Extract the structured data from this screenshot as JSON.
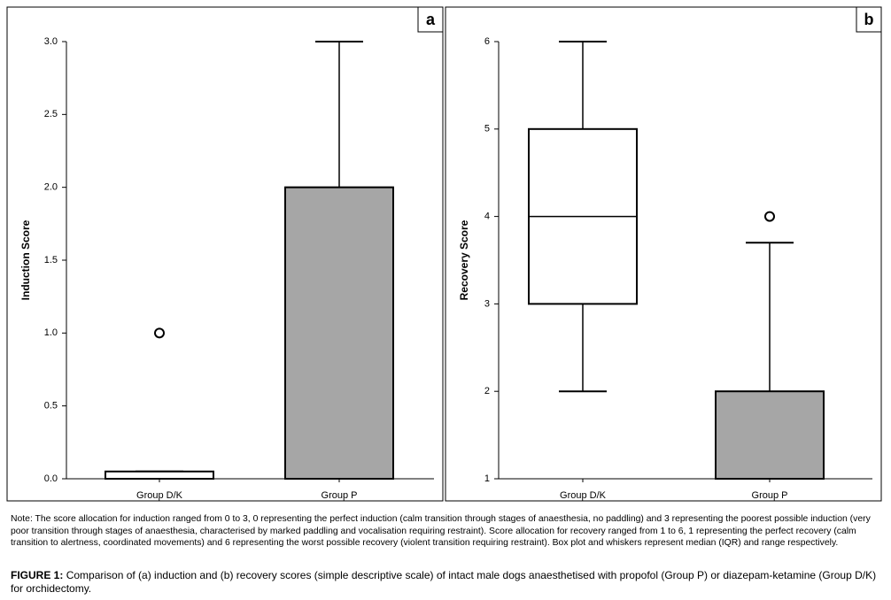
{
  "chart_data": [
    {
      "type": "box",
      "label": "a",
      "ylabel": "Induction Score",
      "categories": [
        "Group D/K",
        "Group P"
      ],
      "boxes": [
        {
          "min": 0,
          "q1": 0,
          "median": 0,
          "q3": 0.05,
          "max": 0.05,
          "outliers": [
            1.0
          ],
          "color": "#ffffff"
        },
        {
          "min": 0,
          "q1": 0,
          "median": 2.0,
          "q3": 2.0,
          "max": 3.0,
          "outliers": [],
          "color": "#a6a6a6"
        }
      ],
      "ylim": [
        0,
        3
      ],
      "yticks": [
        {
          "value": 0,
          "label": "0.0"
        },
        {
          "value": 0.5,
          "label": "0.5"
        },
        {
          "value": 1,
          "label": "1.0"
        },
        {
          "value": 1.5,
          "label": "1.5"
        },
        {
          "value": 2,
          "label": "2.0"
        },
        {
          "value": 2.5,
          "label": "2.5"
        },
        {
          "value": 3,
          "label": "3.0"
        }
      ]
    },
    {
      "type": "box",
      "label": "b",
      "ylabel": "Recovery Score",
      "categories": [
        "Group D/K",
        "Group P"
      ],
      "boxes": [
        {
          "min": 2,
          "q1": 3,
          "median": 4,
          "q3": 5,
          "max": 6,
          "outliers": [],
          "color": "#ffffff"
        },
        {
          "min": 1,
          "q1": 1,
          "median": 2,
          "q3": 2,
          "max": 3.7,
          "outliers": [
            4
          ],
          "color": "#a6a6a6"
        }
      ],
      "ylim": [
        1,
        6
      ],
      "yticks": [
        1,
        2,
        3,
        4,
        5,
        6
      ]
    }
  ],
  "note": "Note: The score allocation for induction ranged from 0 to 3, 0 representing the perfect induction (calm transition through stages of anaesthesia, no paddling) and 3 representing the poorest possible induction (very poor transition through stages of anaesthesia, characterised by marked paddling and vocalisation requiring restraint). Score allocation for recovery ranged from 1 to 6, 1 representing the perfect recovery (calm transition to alertness, coordinated movements) and 6 representing the worst possible recovery (violent transition requiring restraint). Box plot and whiskers represent median (IQR) and range respectively.",
  "caption": {
    "label": "FIGURE 1:",
    "text": "Comparison of (a) induction and (b) recovery scores (simple descriptive scale) of intact male dogs anaesthetised with propofol (Group P) or diazepam-ketamine (Group D/K) for orchidectomy."
  }
}
